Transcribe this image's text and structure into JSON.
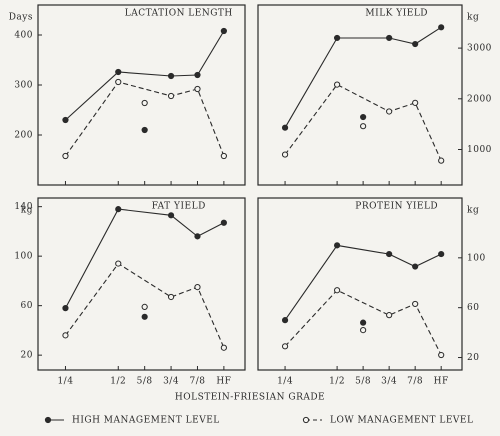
{
  "chart_data": [
    {
      "type": "line",
      "title": "LACTATION LENGTH",
      "y_label": "Days",
      "y_axis_side": "left",
      "x": [
        0.25,
        0.5,
        0.625,
        0.75,
        0.875,
        1.0
      ],
      "detached_x": 0.625,
      "xlim": [
        0.12,
        1.1
      ],
      "ylim": [
        100,
        460
      ],
      "yticks": [
        200,
        300,
        400
      ],
      "series": [
        {
          "name": "HIGH MANAGEMENT LEVEL",
          "line": "solid",
          "marker": "filled",
          "color": "#2a2a2a",
          "values": [
            230,
            326,
            210,
            318,
            320,
            408
          ]
        },
        {
          "name": "LOW MANAGEMENT LEVEL",
          "line": "dashed",
          "marker": "open",
          "color": "#2a2a2a",
          "values": [
            158,
            306,
            264,
            278,
            292,
            158
          ]
        }
      ]
    },
    {
      "type": "line",
      "title": "MILK YIELD",
      "y_label": "kg",
      "y_axis_side": "right",
      "x": [
        0.25,
        0.5,
        0.625,
        0.75,
        0.875,
        1.0
      ],
      "detached_x": 0.625,
      "xlim": [
        0.12,
        1.1
      ],
      "ylim": [
        300,
        3850
      ],
      "yticks": [
        1000,
        2000,
        3000
      ],
      "series": [
        {
          "line": "solid",
          "marker": "filled",
          "color": "#2a2a2a",
          "values": [
            1430,
            3200,
            1640,
            3200,
            3080,
            3410
          ]
        },
        {
          "line": "dashed",
          "marker": "open",
          "color": "#2a2a2a",
          "values": [
            900,
            2280,
            1460,
            1750,
            1920,
            780
          ]
        }
      ]
    },
    {
      "type": "line",
      "title": "FAT YIELD",
      "y_label": "kg",
      "y_axis_side": "left",
      "x": [
        0.25,
        0.5,
        0.625,
        0.75,
        0.875,
        1.0
      ],
      "detached_x": 0.625,
      "xlim": [
        0.12,
        1.1
      ],
      "xticks": [
        {
          "value": 0.25,
          "label": "1/4"
        },
        {
          "value": 0.5,
          "label": "1/2"
        },
        {
          "value": 0.625,
          "label": "5/8"
        },
        {
          "value": 0.75,
          "label": "3/4"
        },
        {
          "value": 0.875,
          "label": "7/8"
        },
        {
          "value": 1.0,
          "label": "HF"
        }
      ],
      "x_label": "HOLSTEIN-FRIESIAN GRADE",
      "ylim": [
        8,
        147
      ],
      "yticks": [
        20,
        60,
        100,
        140
      ],
      "series": [
        {
          "line": "solid",
          "marker": "filled",
          "color": "#2a2a2a",
          "values": [
            58,
            138,
            51,
            133,
            116,
            127
          ]
        },
        {
          "line": "dashed",
          "marker": "open",
          "color": "#2a2a2a",
          "values": [
            36,
            94,
            59,
            67,
            75,
            26
          ]
        }
      ]
    },
    {
      "type": "line",
      "title": "PROTEIN YIELD",
      "y_label": "kg",
      "y_axis_side": "right",
      "x": [
        0.25,
        0.5,
        0.625,
        0.75,
        0.875,
        1.0
      ],
      "detached_x": 0.625,
      "xlim": [
        0.12,
        1.1
      ],
      "xticks": [
        {
          "value": 0.25,
          "label": "1/4"
        },
        {
          "value": 0.5,
          "label": "1/2"
        },
        {
          "value": 0.625,
          "label": "5/8"
        },
        {
          "value": 0.75,
          "label": "3/4"
        },
        {
          "value": 0.875,
          "label": "7/8"
        },
        {
          "value": 1.0,
          "label": "HF"
        }
      ],
      "ylim": [
        10,
        148
      ],
      "yticks": [
        20,
        60,
        100
      ],
      "series": [
        {
          "line": "solid",
          "marker": "filled",
          "color": "#2a2a2a",
          "values": [
            50,
            110,
            48,
            103,
            93,
            103
          ]
        },
        {
          "line": "dashed",
          "marker": "open",
          "color": "#2a2a2a",
          "values": [
            29,
            74,
            42,
            54,
            63,
            22
          ]
        }
      ]
    }
  ]
}
